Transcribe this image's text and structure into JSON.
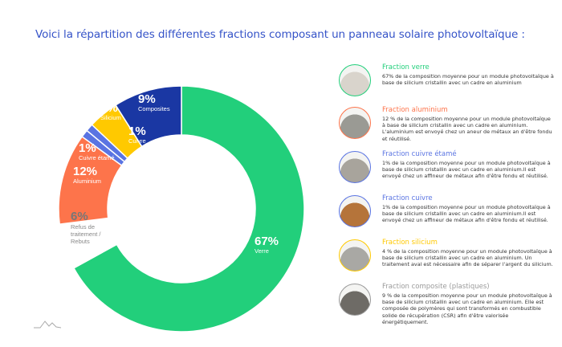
{
  "title": "Voici la répartition des différentes fractions composant un panneau solaire photovoltaïque :",
  "chart_data": {
    "type": "pie",
    "variant": "donut",
    "start": "top, clockwise",
    "slices": [
      {
        "label": "Verre",
        "value": 67,
        "pct_label": "67%",
        "color": "#22cf7b"
      },
      {
        "label": "Refus de traitement / Rebuts",
        "value": 6,
        "pct_label": "6%",
        "color": "#ffffff"
      },
      {
        "label": "Aluminium",
        "value": 12,
        "pct_label": "12%",
        "color": "#fd744b"
      },
      {
        "label": "Cuivre étamé",
        "value": 1,
        "pct_label": "1%",
        "color": "#5a74e2"
      },
      {
        "label": "Cuivre",
        "value": 1,
        "pct_label": "1%",
        "color": "#5a74e2"
      },
      {
        "label": "Silicium",
        "value": 4,
        "pct_label": "4%",
        "color": "#ffc900"
      },
      {
        "label": "Composites",
        "value": 9,
        "pct_label": "9%",
        "color": "#1a37a3"
      }
    ]
  },
  "legend": [
    {
      "title": "Fraction verre",
      "color": "#22cf7b",
      "thumb": "#d9d4cc",
      "text": "67% de la composition moyenne pour un module photovoltaïque à base de silicium cristallin avec un cadre en aluminium"
    },
    {
      "title": "Fraction aluminium",
      "color": "#fd744b",
      "thumb": "#9a9a94",
      "text": "12 % de la composition moyenne pour un module photovoltaïque à base de silicium cristallin avec un cadre en aluminium. L'aluminium est envoyé chez un aneur de métaux an d'être fondu et réutilisé."
    },
    {
      "title": "Fraction cuivre étamé",
      "color": "#5a74e2",
      "thumb": "#a8a49c",
      "text": "1% de la composition moyenne pour un module photovoltaïque à base de silicium cristallin avec un cadre en aluminium.Il est envoyé chez un affineur de métaux afin d'être fondu et réutilisé."
    },
    {
      "title": "Fraction cuivre",
      "color": "#5a74e2",
      "thumb": "#b5743a",
      "text": "1% de la composition moyenne pour un module photovoltaïque à base de silicium cristallin avec un cadre en aluminium.Il est envoyé chez un affineur de métaux afin d'être fondu et réutilisé."
    },
    {
      "title": "Fraction silicium",
      "color": "#ffc900",
      "thumb": "#a9a8a4",
      "text": "4 % de la composition moyenne pour un module photovoltaïque à base de silicium cristallin avec un cadre en aluminium. Un traitement aval est nécessaire afin de séparer l'argent du silicium."
    },
    {
      "title": "Fraction composite (plastiques)",
      "color": "#9a9a9a",
      "thumb": "#6e6b66",
      "text": "9 % de la composition moyenne pour un module photovoltaïque à base de silicium cristallin avec un cadre en aluminium. Elle est composée de polymères qui sont transformés en combustible solide de récupération (CSR) afin d'être valorisée énergétiquement."
    }
  ]
}
